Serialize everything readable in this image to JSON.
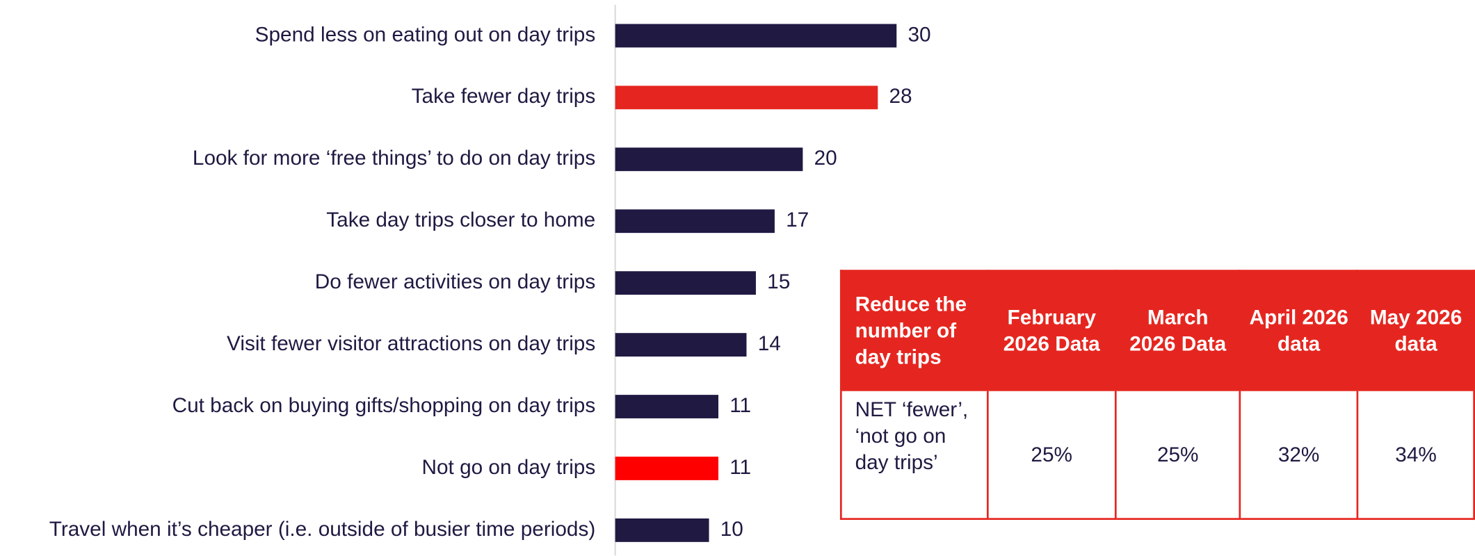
{
  "chart_data": {
    "type": "bar",
    "orientation": "horizontal",
    "categories": [
      "Spend less on eating out on day trips",
      "Take fewer day trips",
      "Look for more ‘free things’ to do on day trips",
      "Take day trips closer to home",
      "Do fewer activities on day trips",
      "Visit fewer visitor attractions on day trips",
      "Cut back on buying gifts/shopping on day trips",
      "Not go on day trips",
      "Travel when it’s cheaper (i.e. outside of busier time periods)"
    ],
    "values": [
      30,
      28,
      20,
      17,
      15,
      14,
      11,
      11,
      10
    ],
    "colors": [
      "#201942",
      "#e52620",
      "#201942",
      "#201942",
      "#201942",
      "#201942",
      "#201942",
      "#ff0000",
      "#201942"
    ]
  },
  "table": {
    "header": [
      "Reduce the number of day trips",
      "February 2026 Data",
      "March 2026 Data",
      "April 2026 data",
      "May 2026 data"
    ],
    "rows": [
      [
        "NET ‘fewer’, ‘not go on day trips’",
        "25%",
        "25%",
        "32%",
        "34%"
      ]
    ]
  }
}
